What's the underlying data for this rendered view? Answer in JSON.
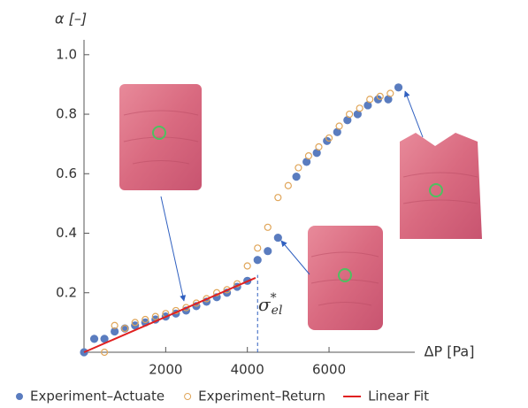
{
  "chart_data": {
    "type": "scatter",
    "x_label": "ΔP [Pa]",
    "y_label": "α [–]",
    "xlim": [
      0,
      8100
    ],
    "ylim": [
      0,
      1.05
    ],
    "xticks": [
      2000,
      4000,
      6000
    ],
    "yticks": [
      0.2,
      0.4,
      0.6,
      0.8,
      {
        "value": 1,
        "label": "1.0"
      }
    ],
    "series": [
      {
        "name": "Experiment–Actuate",
        "color": "#5a7cbf",
        "marker": "filled",
        "x": [
          0,
          250,
          500,
          750,
          1000,
          1250,
          1500,
          1750,
          2000,
          2250,
          2500,
          2750,
          3000,
          3250,
          3500,
          3750,
          4000,
          4250,
          4500,
          4750,
          5200,
          5450,
          5700,
          5950,
          6200,
          6450,
          6700,
          6950,
          7200,
          7450,
          7700
        ],
        "values": [
          0,
          0.045,
          0.045,
          0.07,
          0.08,
          0.09,
          0.1,
          0.11,
          0.12,
          0.13,
          0.14,
          0.155,
          0.17,
          0.185,
          0.2,
          0.22,
          0.24,
          0.31,
          0.34,
          0.385,
          0.59,
          0.64,
          0.67,
          0.71,
          0.74,
          0.78,
          0.8,
          0.83,
          0.85,
          0.85,
          0.89
        ]
      },
      {
        "name": "Experiment–Return",
        "color": "#e0a65a",
        "marker": "open",
        "x": [
          500,
          750,
          1000,
          1250,
          1500,
          1750,
          2000,
          2250,
          2500,
          2750,
          3000,
          3250,
          3500,
          3750,
          4000,
          4250,
          4500,
          4750,
          5000,
          5250,
          5500,
          5750,
          6000,
          6250,
          6500,
          6750,
          7000,
          7250,
          7500
        ],
        "values": [
          0.0,
          0.09,
          0.08,
          0.1,
          0.11,
          0.12,
          0.13,
          0.14,
          0.15,
          0.165,
          0.18,
          0.2,
          0.21,
          0.23,
          0.29,
          0.35,
          0.42,
          0.52,
          0.56,
          0.62,
          0.66,
          0.69,
          0.72,
          0.76,
          0.8,
          0.82,
          0.85,
          0.86,
          0.87
        ]
      },
      {
        "name": "Linear Fit",
        "color": "#e02020",
        "marker": "line",
        "x": [
          0,
          4200
        ],
        "values": [
          0,
          0.25
        ]
      }
    ],
    "annotation": {
      "symbol": "σ",
      "superscript": "*",
      "subscript": "el",
      "x": 4250,
      "y": 0.26
    }
  }
}
